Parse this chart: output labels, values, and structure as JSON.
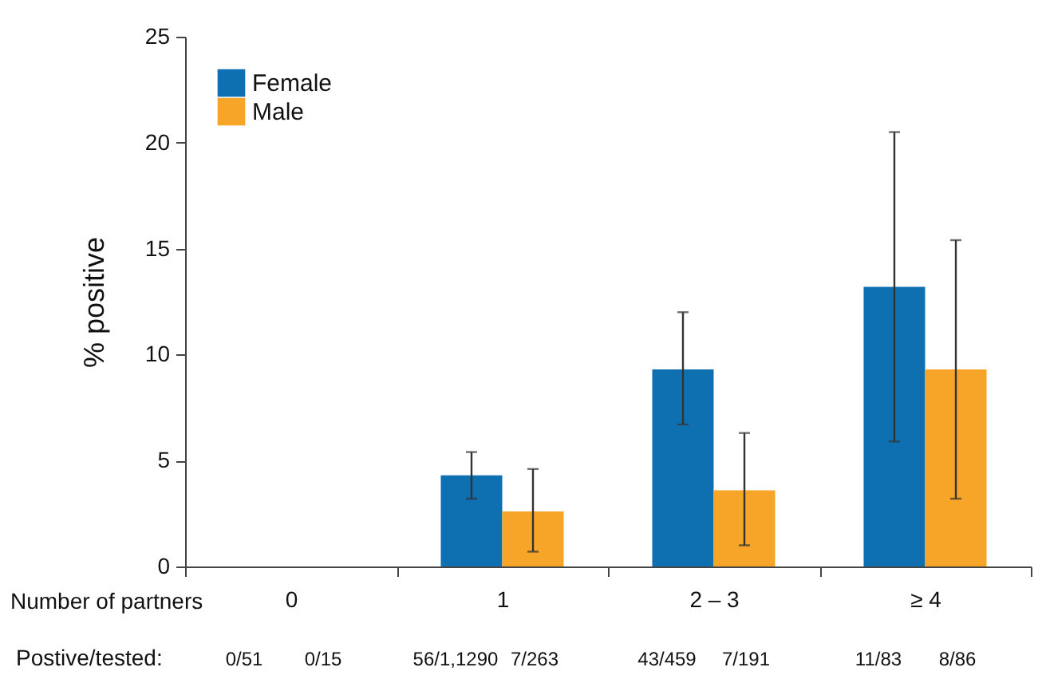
{
  "chart_data": {
    "type": "bar",
    "ylabel": "% positive",
    "xlabel": "Number of partners",
    "categories": [
      "0",
      "1",
      "2 – 3",
      "≥ 4"
    ],
    "series": [
      {
        "name": "Female",
        "color": "#0e70b1",
        "values": [
          0,
          4.3,
          9.3,
          13.2
        ],
        "errors": [
          null,
          [
            3.2,
            5.4
          ],
          [
            6.7,
            12.0
          ],
          [
            5.9,
            20.5
          ]
        ]
      },
      {
        "name": "Male",
        "color": "#f6a528",
        "values": [
          0,
          2.6,
          3.6,
          9.3
        ],
        "errors": [
          null,
          [
            0.7,
            4.6
          ],
          [
            1.0,
            6.3
          ],
          [
            3.2,
            15.4
          ]
        ]
      }
    ],
    "annotations": [
      "Postive/tested:",
      "0/51",
      "0/15",
      "56/1,1290",
      "7/263",
      "43/459",
      "7/191",
      "11/83",
      "8/86"
    ],
    "ylim": [
      0,
      25
    ],
    "yticks": [
      0,
      5,
      10,
      15,
      20,
      25
    ],
    "grid": false,
    "legend": "top left"
  }
}
